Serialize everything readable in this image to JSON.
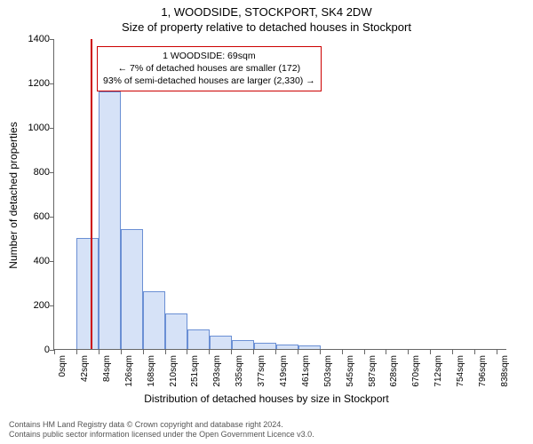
{
  "header": {
    "line1": "1, WOODSIDE, STOCKPORT, SK4 2DW",
    "line2": "Size of property relative to detached houses in Stockport"
  },
  "chart": {
    "type": "histogram",
    "xlabel": "Distribution of detached houses by size in Stockport",
    "ylabel": "Number of detached properties",
    "xlim": [
      0,
      858
    ],
    "ylim": [
      0,
      1400
    ],
    "yticks": [
      0,
      200,
      400,
      600,
      800,
      1000,
      1200,
      1400
    ],
    "xticks": [
      0,
      42,
      84,
      126,
      168,
      210,
      251,
      293,
      335,
      377,
      419,
      461,
      503,
      545,
      587,
      628,
      670,
      712,
      754,
      796,
      838
    ],
    "xtick_unit": "sqm",
    "bar_fill": "#d6e2f7",
    "bar_stroke": "#6a8fd4",
    "bar_stroke_width": 1,
    "bin_width": 42,
    "bars": [
      {
        "x": 42,
        "count": 500
      },
      {
        "x": 84,
        "count": 1160
      },
      {
        "x": 126,
        "count": 540
      },
      {
        "x": 168,
        "count": 260
      },
      {
        "x": 210,
        "count": 160
      },
      {
        "x": 252,
        "count": 90
      },
      {
        "x": 294,
        "count": 60
      },
      {
        "x": 336,
        "count": 40
      },
      {
        "x": 378,
        "count": 30
      },
      {
        "x": 420,
        "count": 20
      },
      {
        "x": 462,
        "count": 15
      },
      {
        "x": 504,
        "count": 0
      },
      {
        "x": 546,
        "count": 0
      },
      {
        "x": 588,
        "count": 0
      },
      {
        "x": 630,
        "count": 0
      },
      {
        "x": 672,
        "count": 0
      },
      {
        "x": 714,
        "count": 0
      },
      {
        "x": 756,
        "count": 0
      },
      {
        "x": 798,
        "count": 0
      },
      {
        "x": 840,
        "count": 0
      }
    ],
    "marker_line": {
      "x": 69,
      "color": "#cc0000",
      "width": 2
    },
    "background_color": "#ffffff",
    "axis_color": "#666666",
    "tick_fontsize": 11,
    "label_fontsize": 12
  },
  "legend": {
    "border_color": "#cc0000",
    "line1": "1 WOODSIDE: 69sqm",
    "line2": "← 7% of detached houses are smaller (172)",
    "line3": "93% of semi-detached houses are larger (2,330) →"
  },
  "footer": {
    "line1": "Contains HM Land Registry data © Crown copyright and database right 2024.",
    "line2": "Contains public sector information licensed under the Open Government Licence v3.0."
  }
}
